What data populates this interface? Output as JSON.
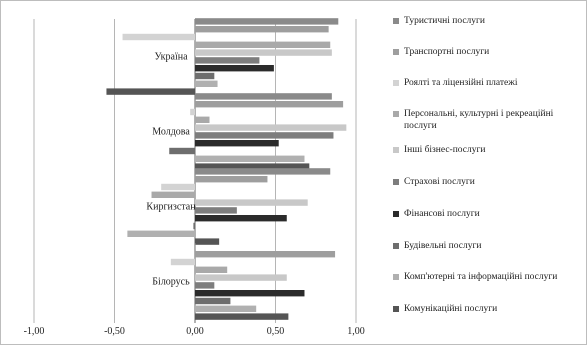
{
  "chart_data": {
    "type": "bar",
    "orientation": "horizontal",
    "categories": [
      "Україна",
      "Молдова",
      "Киргизстан",
      "Білорусь"
    ],
    "xlim": [
      -1.0,
      1.0
    ],
    "xticks": [
      "-1,00",
      "-0,50",
      "0,00",
      "0,50",
      "1,00"
    ],
    "legend_position": "right",
    "grid": "vertical",
    "series": [
      {
        "name": "Туристичні послуги",
        "color": "#8a8a8a",
        "values": [
          0.89,
          0.85,
          0.84,
          0.0
        ]
      },
      {
        "name": "Транспортні послуги",
        "color": "#9e9e9e",
        "values": [
          0.83,
          0.92,
          0.45,
          0.87
        ]
      },
      {
        "name": "Роялті та ліцензійні платежі",
        "color": "#d3d3d3",
        "values": [
          -0.45,
          -0.03,
          -0.21,
          -0.15
        ]
      },
      {
        "name": "Персональні, культурні і рекреаційні послуги",
        "color": "#a9a9a9",
        "values": [
          0.84,
          0.09,
          -0.27,
          0.2
        ]
      },
      {
        "name": "Інші бізнес-послуги",
        "color": "#c8c8c8",
        "values": [
          0.85,
          0.94,
          0.7,
          0.57
        ]
      },
      {
        "name": "Страхові послуги",
        "color": "#7d7d7d",
        "values": [
          0.4,
          0.86,
          0.26,
          0.12
        ]
      },
      {
        "name": "Фінансові послуги",
        "color": "#2b2b2b",
        "values": [
          0.49,
          0.52,
          0.57,
          0.68
        ]
      },
      {
        "name": "Будівельні послуги",
        "color": "#6e6e6e",
        "values": [
          0.12,
          -0.16,
          -0.01,
          0.22
        ]
      },
      {
        "name": "Комп'ютерні та інформаційні послуги",
        "color": "#b0b0b0",
        "values": [
          0.14,
          0.68,
          -0.42,
          0.38
        ]
      },
      {
        "name": "Комунікаційні послуги",
        "color": "#555555",
        "values": [
          -0.55,
          0.71,
          0.15,
          0.58
        ]
      }
    ]
  }
}
